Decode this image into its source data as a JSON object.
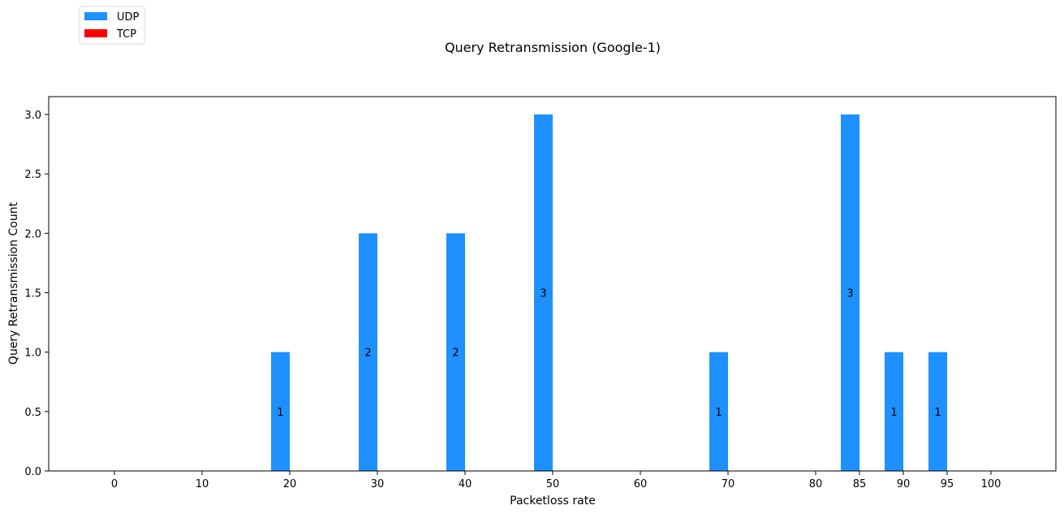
{
  "chart_data": {
    "type": "bar",
    "title": "Query Retransmission (Google-1)",
    "xlabel": "Packetloss rate",
    "ylabel": "Query Retransmission Count",
    "categories": [
      "0",
      "10",
      "20",
      "30",
      "40",
      "50",
      "60",
      "70",
      "80",
      "85",
      "90",
      "95",
      "100"
    ],
    "series": [
      {
        "name": "UDP",
        "color": "#1e90ff",
        "values": [
          0,
          0,
          1,
          2,
          2,
          3,
          0,
          1,
          0,
          3,
          1,
          1,
          0
        ]
      },
      {
        "name": "TCP",
        "color": "#ff0000",
        "values": [
          0,
          0,
          0,
          0,
          0,
          0,
          0,
          0,
          0,
          0,
          0,
          0,
          0
        ]
      }
    ],
    "bar_labels": [
      "",
      "",
      "1",
      "2",
      "2",
      "3",
      "",
      "1",
      "",
      "3",
      "1",
      "1",
      ""
    ],
    "yticks": [
      "0.0",
      "0.5",
      "1.0",
      "1.5",
      "2.0",
      "2.5",
      "3.0"
    ],
    "ylim": [
      0,
      3.15
    ],
    "legend_position": "top-left",
    "grid": false
  }
}
